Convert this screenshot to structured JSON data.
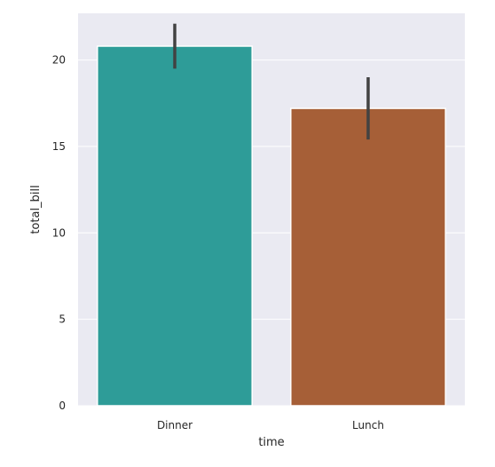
{
  "chart_data": {
    "type": "bar",
    "title": "",
    "xlabel": "time",
    "ylabel": "total_bill",
    "categories": [
      "Dinner",
      "Lunch"
    ],
    "values": [
      20.8,
      17.2
    ],
    "error_bars": [
      {
        "low": 19.5,
        "high": 22.1
      },
      {
        "low": 15.4,
        "high": 19.0
      }
    ],
    "ylim": [
      0,
      22.7
    ],
    "yticks": [
      0,
      5,
      10,
      15,
      20
    ],
    "grid": true,
    "background_color": "#eaeaf2",
    "grid_color": "#ffffff",
    "bar_colors": [
      "#2e9c98",
      "#a65f37"
    ],
    "error_bar_color": "#424242"
  }
}
